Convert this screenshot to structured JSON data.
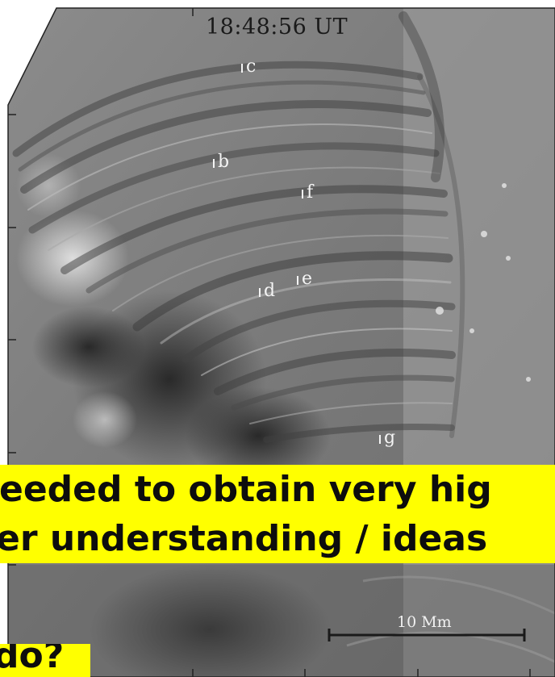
{
  "image": {
    "timestamp": "18:48:56 UT",
    "fibril_labels": [
      "c",
      "b",
      "f",
      "d",
      "e",
      "g"
    ],
    "scale_bar_label": "10 Mm"
  },
  "caption": {
    "line1": "eeded to obtain very hig",
    "line2": "er understanding / ideas",
    "line3": "do?"
  },
  "colors": {
    "caption_background": "#ffff00",
    "caption_text": "#0d0d0d"
  }
}
